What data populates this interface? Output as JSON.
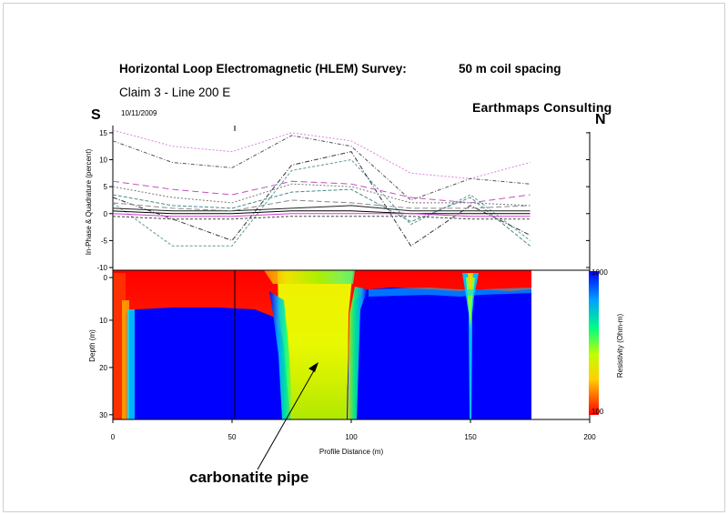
{
  "header": {
    "title": "Horizontal Loop Electromagnetic (HLEM) Survey:",
    "coil_spacing": "50 m coil spacing",
    "subtitle": "Claim 3  -  Line 200 E",
    "date": "10/11/2009",
    "company": "Earthmaps Consulting",
    "direction_left": "S",
    "direction_right": "N"
  },
  "annotation": {
    "label": "carbonatite pipe"
  },
  "chart_data": [
    {
      "type": "line",
      "ylabel": "In-Phase & Quadrature (percent)",
      "ylim": [
        -10,
        16
      ],
      "xlim": [
        0,
        200
      ],
      "yticks": [
        -10,
        -5,
        0,
        5,
        10,
        15
      ],
      "x": [
        0,
        25,
        50,
        75,
        100,
        125,
        150,
        175
      ],
      "series": [
        {
          "color": "#e080e0",
          "dash": "2,2",
          "values": [
            15.5,
            12.5,
            11.5,
            15,
            13.5,
            7.5,
            6.5,
            9.5
          ]
        },
        {
          "color": "#555555",
          "dash": "4,2,1,2",
          "values": [
            13.5,
            9.5,
            8.5,
            14.5,
            12.5,
            2.5,
            6.5,
            5.5
          ]
        },
        {
          "color": "#5a9a9a",
          "dash": "3,2",
          "values": [
            2,
            -6,
            -6,
            8,
            10,
            -2,
            3.5,
            -5
          ]
        },
        {
          "color": "#333333",
          "dash": "5,2,1,2",
          "values": [
            3,
            -1,
            -5,
            9,
            11.5,
            -6,
            1.5,
            -4
          ]
        },
        {
          "color": "#c050c0",
          "dash": "7,4",
          "values": [
            6,
            4.5,
            3.5,
            6,
            5.5,
            3,
            2,
            3.5
          ]
        },
        {
          "color": "#777777",
          "dash": "2,2",
          "values": [
            5,
            3,
            2,
            5.5,
            5,
            2,
            2,
            1.5
          ]
        },
        {
          "color": "#4a8a8a",
          "dash": "4,2",
          "values": [
            3.5,
            1.5,
            1,
            4,
            4.5,
            -1.5,
            3,
            -6
          ]
        },
        {
          "color": "#222222",
          "dash": "",
          "values": [
            1,
            0.5,
            0.5,
            1,
            1.5,
            0.5,
            0.5,
            0.5
          ]
        },
        {
          "color": "#000000",
          "dash": "",
          "values": [
            0.5,
            0,
            0,
            0.5,
            0.5,
            0,
            0,
            0
          ]
        },
        {
          "color": "#d040d0",
          "dash": "",
          "values": [
            0,
            -0.5,
            -0.5,
            0,
            0,
            0,
            -0.5,
            -0.5
          ]
        },
        {
          "color": "#444444",
          "dash": "3,2",
          "values": [
            -0.5,
            -1,
            -1,
            -0.5,
            -0.5,
            -0.5,
            -1,
            -1
          ]
        },
        {
          "color": "#888888",
          "dash": "6,3",
          "values": [
            2,
            1,
            0.5,
            2.5,
            2,
            1,
            1,
            1.5
          ]
        }
      ]
    },
    {
      "type": "heatmap",
      "title": "",
      "xlabel": "Profile Distance (m)",
      "ylabel": "Depth (m)",
      "xlim": [
        0,
        200
      ],
      "ylim": [
        0,
        31
      ],
      "xticks": [
        0,
        50,
        100,
        150,
        200
      ],
      "yticks": [
        0,
        10,
        20,
        30
      ],
      "colorbar": {
        "label": "Resistivity (Ohm-m)",
        "max_label": "1000",
        "min_label": "100"
      },
      "data_extent_x": [
        0,
        175
      ],
      "notes": "Conductive (red) surface layer over resistive (blue) basement; moderate-resistivity (green/yellow) pipe between ~75 and 100 m; narrow dip near 150 m"
    }
  ]
}
